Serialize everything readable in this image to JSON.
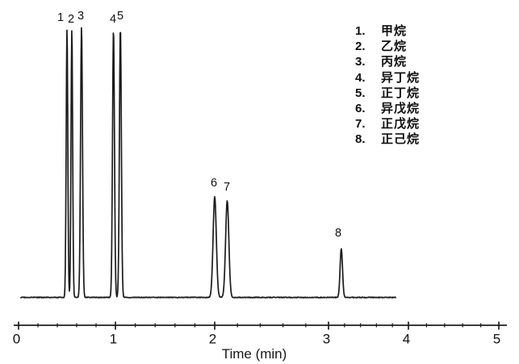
{
  "figure": {
    "background_color": "#ffffff",
    "trace_color": "#1b1b1b",
    "axis_color": "#1e1e1e",
    "text_color": "#111111"
  },
  "chart_data": {
    "type": "line",
    "subtype": "chromatogram",
    "title": "",
    "xlabel": "Time (min)",
    "ylabel": "",
    "grid": false,
    "legend_position": "upper-right",
    "x_axis": {
      "min": 0,
      "max": 5,
      "major_tick_interval": 1,
      "minor_tick_interval": 0.2,
      "tick_labels": [
        "0",
        "1",
        "2",
        "3",
        "4",
        "5"
      ]
    },
    "trace": {
      "baseline_value": 0,
      "start_min": 0.02,
      "end_min": 3.85
    },
    "peaks": [
      {
        "num": "1",
        "name": "甲烷",
        "retention_time_min": 0.5,
        "relative_height": 0.995
      },
      {
        "num": "2",
        "name": "乙烷",
        "retention_time_min": 0.55,
        "relative_height": 0.992
      },
      {
        "num": "3",
        "name": "丙烷",
        "retention_time_min": 0.65,
        "relative_height": 1.0
      },
      {
        "num": "4",
        "name": "异丁烷",
        "retention_time_min": 0.98,
        "relative_height": 0.992
      },
      {
        "num": "5",
        "name": "正丁烷",
        "retention_time_min": 1.05,
        "relative_height": 1.0
      },
      {
        "num": "6",
        "name": "异戊烷",
        "retention_time_min": 2.0,
        "relative_height": 0.373
      },
      {
        "num": "7",
        "name": "正戊烷",
        "retention_time_min": 2.11,
        "relative_height": 0.358
      },
      {
        "num": "8",
        "name": "正己烷",
        "retention_time_min": 3.16,
        "relative_height": 0.18
      }
    ]
  }
}
